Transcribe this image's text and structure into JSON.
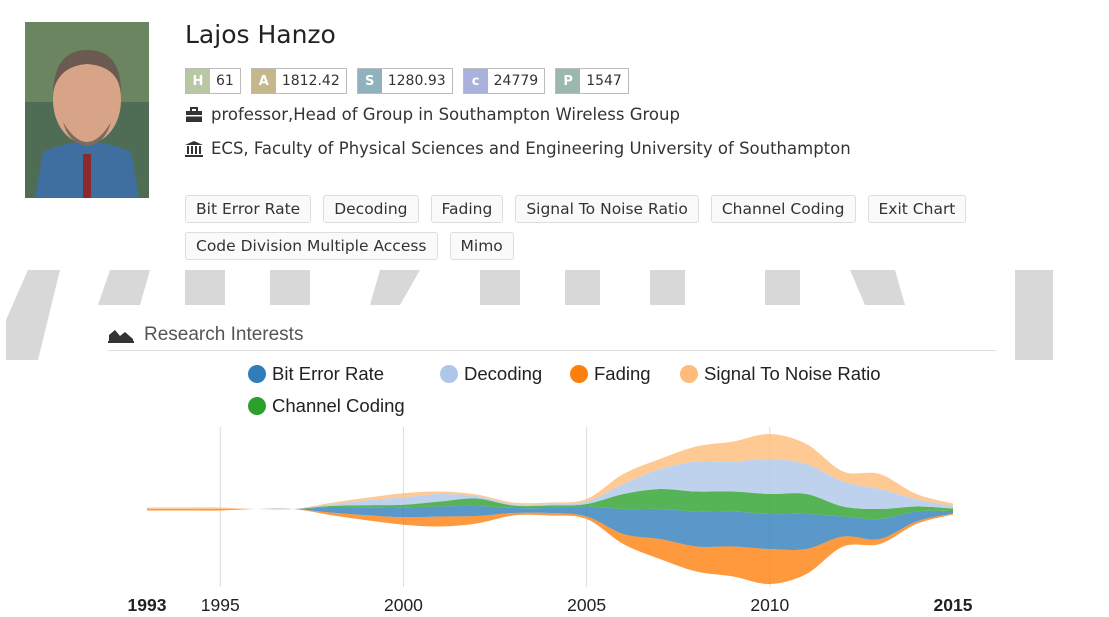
{
  "profile": {
    "name": "Lajos Hanzo",
    "metrics": [
      {
        "label": "H",
        "value": "61",
        "color": "#b8c8a4"
      },
      {
        "label": "A",
        "value": "1812.42",
        "color": "#c6b68c"
      },
      {
        "label": "S",
        "value": "1280.93",
        "color": "#8fb2bc"
      },
      {
        "label": "c",
        "value": "24779",
        "color": "#a9b2dc"
      },
      {
        "label": "P",
        "value": "1547",
        "color": "#9cb8ae"
      }
    ],
    "position": "professor,Head of Group in Southampton Wireless Group",
    "affiliation": "ECS, Faculty of Physical Sciences and Engineering University of Southampton",
    "tags": [
      "Bit Error Rate",
      "Decoding",
      "Fading",
      "Signal To Noise Ratio",
      "Channel Coding",
      "Exit Chart",
      "Code Division Multiple Access",
      "Mimo"
    ]
  },
  "section_title": "Research Interests",
  "chart_data": {
    "type": "streamgraph",
    "x": [
      1993,
      1994,
      1995,
      1996,
      1997,
      1998,
      1999,
      2000,
      2001,
      2002,
      2003,
      2004,
      2005,
      2006,
      2007,
      2008,
      2009,
      2010,
      2011,
      2012,
      2013,
      2014,
      2015
    ],
    "xlim": [
      1993,
      2015
    ],
    "xticks": [
      1993,
      1995,
      2000,
      2005,
      2010,
      2015
    ],
    "grid": true,
    "series": [
      {
        "name": "Bit Error Rate",
        "color": "#2f7ebc",
        "values": [
          0,
          0,
          0,
          0,
          0,
          1,
          1.5,
          2,
          2,
          2,
          1,
          1,
          2,
          5,
          6,
          7,
          7,
          7,
          7,
          4,
          4,
          2,
          0.5
        ]
      },
      {
        "name": "Decoding",
        "color": "#aec7e8",
        "values": [
          0,
          0,
          0,
          0,
          0,
          0.3,
          1,
          1.5,
          1.5,
          0.5,
          0.3,
          0.3,
          0.5,
          2,
          4,
          6,
          6,
          7,
          6,
          5,
          4,
          1.5,
          0.5
        ]
      },
      {
        "name": "Fading",
        "color": "#ff7f0e",
        "values": [
          0.3,
          0.3,
          0.3,
          0,
          0,
          0.5,
          1,
          1.5,
          2,
          1.5,
          0.5,
          0.5,
          0.5,
          2,
          4,
          5,
          6,
          7,
          5,
          2,
          1,
          0.5,
          0.2
        ]
      },
      {
        "name": "Signal To Noise Ratio",
        "color": "#ffbb78",
        "values": [
          0.3,
          0.3,
          0.3,
          0,
          0,
          0.3,
          0.5,
          0.8,
          0.5,
          0.3,
          0.3,
          0.3,
          0.5,
          2,
          2,
          3,
          4,
          5,
          4,
          2,
          3,
          1,
          0.5
        ]
      },
      {
        "name": "Channel Coding",
        "color": "#2ca02c",
        "values": [
          0,
          0,
          0,
          0,
          0,
          0.3,
          0.5,
          0.5,
          1,
          1.5,
          0.5,
          0.5,
          0.5,
          3,
          4,
          4,
          4,
          4,
          4,
          2,
          2,
          1,
          0.5
        ]
      }
    ],
    "stack_order": [
      "Fading",
      "Bit Error Rate",
      "Channel Coding",
      "Decoding",
      "Signal To Noise Ratio"
    ]
  }
}
